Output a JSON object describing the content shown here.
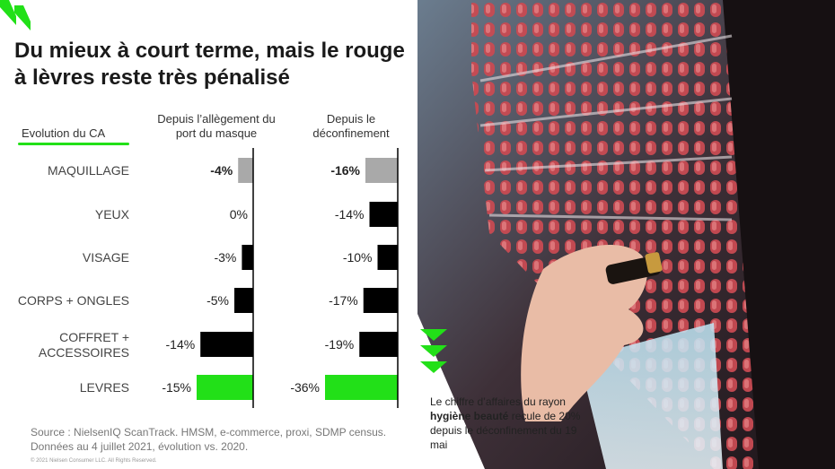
{
  "title": "Du mieux à court terme, mais le rouge à lèvres reste très pénalisé",
  "legend": "Evolution du CA",
  "columns": {
    "col1": "Depuis l’allègement du port du masque",
    "col2": "Depuis le déconfinement"
  },
  "colors": {
    "accent_green": "#22e018",
    "bar_black": "#000000",
    "bar_grey": "#a9a9a9"
  },
  "chart_data": {
    "type": "bar",
    "orientation": "horizontal",
    "categories": [
      "MAQUILLAGE",
      "YEUX",
      "VISAGE",
      "CORPS + ONGLES",
      "COFFRET + ACCESSOIRES",
      "LEVRES"
    ],
    "series": [
      {
        "name": "Depuis l’allègement du port du masque",
        "values": [
          -4,
          0,
          -3,
          -5,
          -14,
          -15
        ],
        "labels": [
          "-4%",
          "0%",
          "-3%",
          "-5%",
          "-14%",
          "-15%"
        ]
      },
      {
        "name": "Depuis le déconfinement",
        "values": [
          -16,
          -14,
          -10,
          -17,
          -19,
          -36
        ],
        "labels": [
          "-16%",
          "-14%",
          "-10%",
          "-17%",
          "-19%",
          "-36%"
        ]
      }
    ],
    "bar_colors": [
      "grey",
      "black",
      "black",
      "black",
      "black",
      "green"
    ],
    "bold_labels": [
      true,
      false,
      false,
      false,
      false,
      false
    ]
  },
  "source": "Source : NielsenIQ ScanTrack. HMSM, e-commerce, proxi, SDMP census. Données au 4 juillet 2021, évolution vs. 2020.",
  "copyright": "© 2021 Nielsen Consumer LLC. All Rights Reserved.",
  "note": {
    "part1": "Le chiffre d’affaires du rayon ",
    "highlight": "hygiène beauté",
    "part2": " recule de 20% depuis le déconfinement du 19 mai"
  }
}
